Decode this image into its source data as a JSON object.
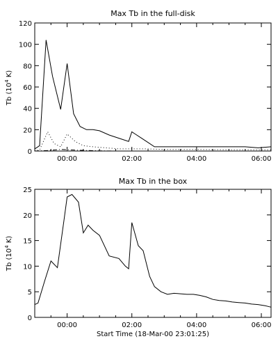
{
  "chart_data": [
    {
      "type": "line",
      "title": "Max Tb in the full-disk",
      "ylabel_main": "Tb (10",
      "ylabel_sup": "4",
      "ylabel_tail": " K)",
      "xlabel": "",
      "xlim_hours": [
        -1.0,
        6.3
      ],
      "ylim": [
        0,
        120
      ],
      "yticks": [
        0,
        20,
        40,
        60,
        80,
        100,
        120
      ],
      "xticks": [
        {
          "hour": 0,
          "label": "00:00"
        },
        {
          "hour": 2,
          "label": "02:00"
        },
        {
          "hour": 4,
          "label": "04:00"
        },
        {
          "hour": 6,
          "label": "06:00"
        }
      ],
      "series": [
        {
          "style": "solid",
          "x_hours": [
            -1.0,
            -0.85,
            -0.65,
            -0.45,
            -0.2,
            0.0,
            0.2,
            0.4,
            0.6,
            0.8,
            1.0,
            1.3,
            1.6,
            1.9,
            2.0,
            2.1,
            2.3,
            2.5,
            2.7,
            3.0,
            3.5,
            4.0,
            4.5,
            5.0,
            5.5,
            5.9,
            6.3
          ],
          "values": [
            2,
            5,
            104,
            70,
            39,
            82,
            35,
            23,
            20,
            20,
            19,
            15,
            12,
            9,
            18,
            16,
            12,
            8,
            4,
            4,
            4,
            4,
            4,
            4,
            4,
            3,
            4
          ]
        },
        {
          "style": "dotted",
          "x_hours": [
            -1.0,
            -0.85,
            -0.6,
            -0.4,
            -0.2,
            0.0,
            0.25,
            0.5,
            0.8,
            1.2,
            1.6,
            2.0,
            2.4,
            3.0,
            4.0,
            5.0,
            6.3
          ],
          "values": [
            0,
            1,
            18,
            7,
            4,
            16,
            9,
            5,
            4,
            3,
            2,
            2,
            2,
            1.5,
            1.5,
            1.2,
            1.2
          ]
        },
        {
          "style": "dash-dot",
          "x_hours": [
            -1.0,
            -0.6,
            -0.2,
            0.2,
            0.6,
            1.0,
            1.5,
            2.0,
            3.0,
            4.0,
            5.0,
            6.3
          ],
          "values": [
            0,
            0.5,
            1.5,
            1,
            0.5,
            0.2,
            0,
            0,
            0,
            0,
            0,
            0
          ]
        }
      ]
    },
    {
      "type": "line",
      "title": "Max Tb in the box",
      "ylabel_main": "Tb (10",
      "ylabel_sup": "4",
      "ylabel_tail": " K)",
      "xlabel": "Start Time (18-Mar-00 23:01:25)",
      "xlim_hours": [
        -1.0,
        6.3
      ],
      "ylim": [
        0,
        25
      ],
      "yticks": [
        0,
        5,
        10,
        15,
        20,
        25
      ],
      "xticks": [
        {
          "hour": 0,
          "label": "00:00"
        },
        {
          "hour": 2,
          "label": "02:00"
        },
        {
          "hour": 4,
          "label": "04:00"
        },
        {
          "hour": 6,
          "label": "06:00"
        }
      ],
      "series": [
        {
          "style": "solid",
          "x_hours": [
            -1.0,
            -0.9,
            -0.7,
            -0.5,
            -0.3,
            -0.1,
            0.0,
            0.15,
            0.35,
            0.5,
            0.65,
            0.8,
            1.0,
            1.3,
            1.6,
            1.8,
            1.9,
            2.0,
            2.2,
            2.35,
            2.55,
            2.7,
            2.9,
            3.1,
            3.3,
            3.5,
            3.7,
            3.9,
            4.1,
            4.3,
            4.5,
            4.7,
            4.9,
            5.1,
            5.3,
            5.5,
            5.7,
            5.9,
            6.1,
            6.3
          ],
          "values": [
            2.5,
            2.8,
            7,
            11,
            9.7,
            18.8,
            23.5,
            24,
            22.5,
            16.5,
            18,
            17,
            16,
            12,
            11.5,
            10,
            9.5,
            18.5,
            14,
            13,
            8,
            6,
            5,
            4.5,
            4.7,
            4.6,
            4.5,
            4.5,
            4.3,
            4,
            3.5,
            3.3,
            3.2,
            3,
            2.9,
            2.8,
            2.6,
            2.5,
            2.3,
            2.0
          ]
        }
      ]
    }
  ]
}
